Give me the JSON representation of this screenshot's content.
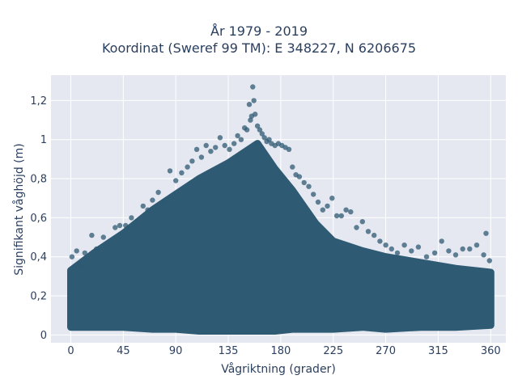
{
  "chart_data": {
    "type": "scatter",
    "title_lines": [
      "År 1979 - 2019",
      "Koordinat (Sweref 99 TM): E 348227, N 6206675"
    ],
    "xlabel": "Vågriktning (grader)",
    "ylabel": "Signifikant våghöjd (m)",
    "xlim": [
      -17,
      373
    ],
    "ylim": [
      -0.04,
      1.33
    ],
    "xticks": [
      0,
      45,
      90,
      135,
      180,
      225,
      270,
      315,
      360
    ],
    "xtick_labels": [
      "0",
      "45",
      "90",
      "135",
      "180",
      "225",
      "270",
      "315",
      "360"
    ],
    "yticks": [
      0,
      0.2,
      0.4,
      0.6,
      0.8,
      1.0,
      1.2
    ],
    "ytick_labels": [
      "0",
      "0,2",
      "0,4",
      "0,6",
      "0,8",
      "1",
      "1,2"
    ],
    "grid": true,
    "point_color": "#2f5a73",
    "background_color": "#e5e8f0",
    "envelope": {
      "x": [
        0,
        20,
        45,
        70,
        90,
        110,
        135,
        150,
        160,
        175,
        190,
        210,
        225,
        250,
        270,
        300,
        330,
        360
      ],
      "ymin": [
        0.04,
        0.04,
        0.04,
        0.03,
        0.03,
        0.02,
        0.02,
        0.02,
        0.02,
        0.02,
        0.03,
        0.03,
        0.03,
        0.04,
        0.03,
        0.04,
        0.04,
        0.05
      ],
      "ymax": [
        0.33,
        0.42,
        0.52,
        0.64,
        0.72,
        0.8,
        0.88,
        0.94,
        0.98,
        0.85,
        0.74,
        0.57,
        0.48,
        0.43,
        0.4,
        0.37,
        0.34,
        0.32
      ]
    },
    "series": [
      {
        "x": [
          1,
          5,
          8,
          12,
          18,
          22,
          28,
          33,
          38,
          42,
          47,
          52,
          57,
          62,
          66,
          70,
          75,
          80,
          85,
          90,
          95,
          100,
          104,
          108,
          112,
          116,
          120,
          124,
          128,
          132,
          136,
          140,
          143,
          146,
          149,
          151,
          153,
          154,
          155,
          156,
          157,
          158,
          160,
          162,
          164,
          166,
          168,
          170,
          172,
          175,
          178,
          181,
          184,
          187,
          190,
          193,
          196,
          200,
          204,
          208,
          212,
          216,
          220,
          224,
          228,
          232,
          236,
          240,
          245,
          250,
          255,
          260,
          265,
          270,
          275,
          280,
          286,
          292,
          298,
          305,
          312,
          318,
          324,
          330,
          336,
          342,
          348,
          354,
          356,
          359
        ],
        "y": [
          0.4,
          0.43,
          0.36,
          0.42,
          0.51,
          0.44,
          0.5,
          0.46,
          0.55,
          0.56,
          0.56,
          0.6,
          0.58,
          0.66,
          0.64,
          0.69,
          0.73,
          0.68,
          0.84,
          0.79,
          0.83,
          0.86,
          0.89,
          0.95,
          0.91,
          0.97,
          0.94,
          0.96,
          1.01,
          0.97,
          0.95,
          0.98,
          1.02,
          1.0,
          1.06,
          1.05,
          1.18,
          1.1,
          1.12,
          1.27,
          1.2,
          1.13,
          1.07,
          1.05,
          1.03,
          1.01,
          0.99,
          1.0,
          0.98,
          0.97,
          0.98,
          0.97,
          0.96,
          0.95,
          0.86,
          0.82,
          0.81,
          0.78,
          0.76,
          0.72,
          0.68,
          0.64,
          0.66,
          0.7,
          0.61,
          0.61,
          0.64,
          0.63,
          0.55,
          0.58,
          0.53,
          0.51,
          0.48,
          0.46,
          0.44,
          0.42,
          0.46,
          0.43,
          0.45,
          0.4,
          0.42,
          0.48,
          0.43,
          0.41,
          0.44,
          0.44,
          0.46,
          0.41,
          0.52,
          0.38
        ]
      }
    ]
  }
}
